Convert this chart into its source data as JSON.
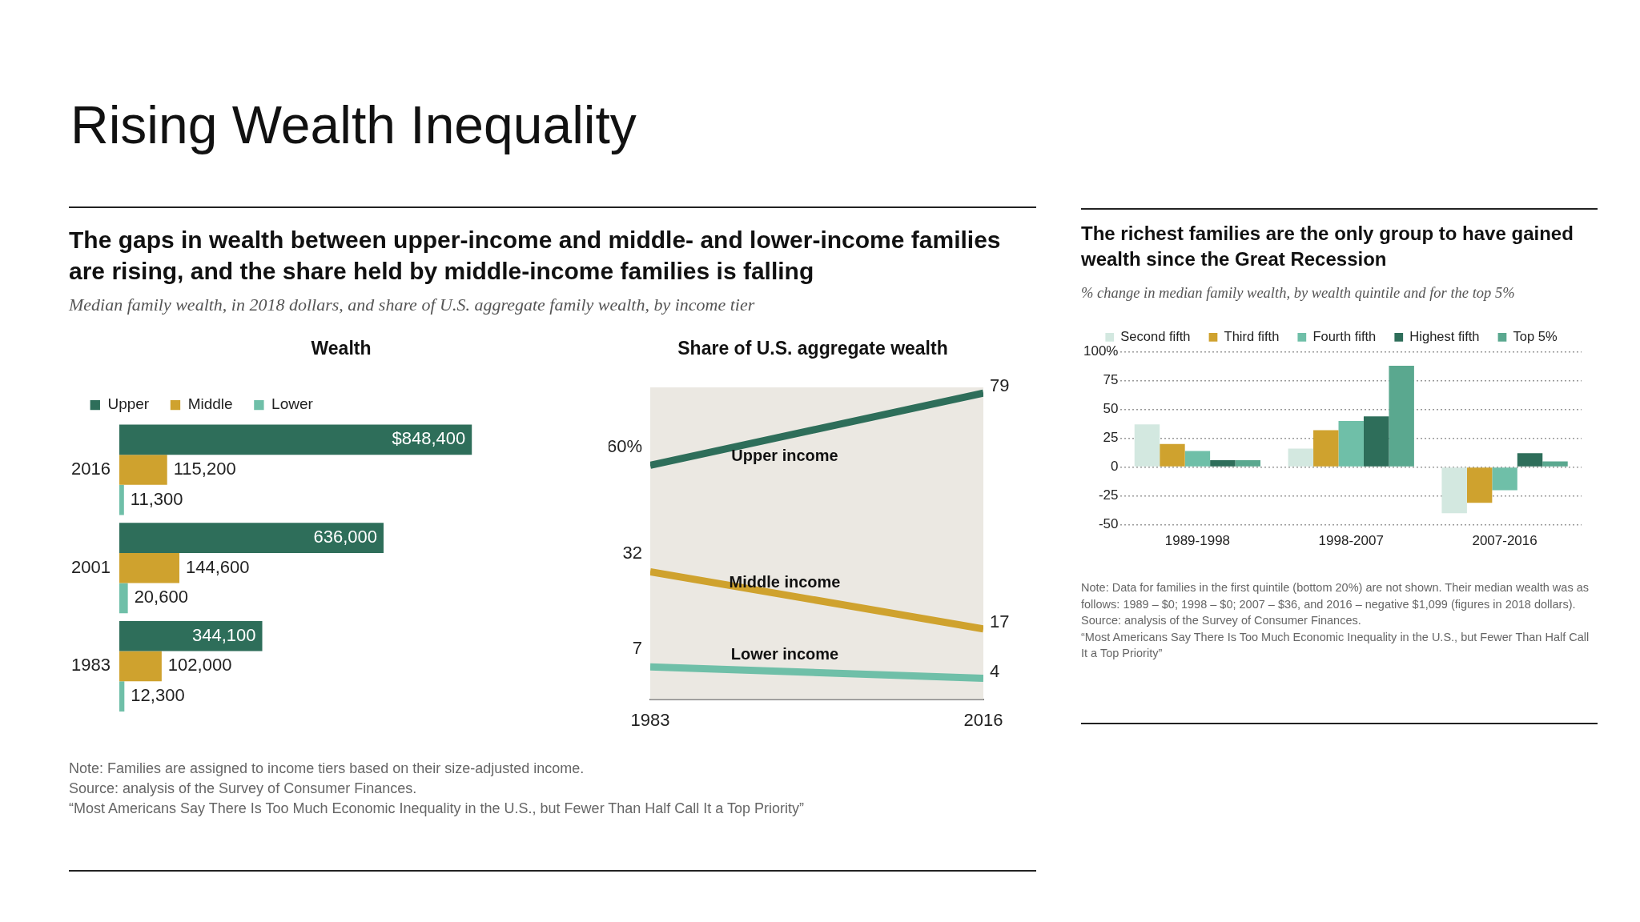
{
  "chart_data": [
    {
      "type": "bar",
      "orientation": "horizontal",
      "title": "Wealth",
      "subtitle": "Median family wealth, in 2018 dollars, and share of U.S. aggregate family wealth, by income tier",
      "annotations": [
        "Rising Wealth Inequality",
        "The gaps in wealth between upper-income and middle- and lower-income families are rising, and the share held by middle-income families is falling"
      ],
      "categories": [
        "2016",
        "2001",
        "1983"
      ],
      "series": [
        {
          "name": "Upper",
          "color": "#2e6e5a",
          "values": [
            848400,
            636000,
            344100
          ],
          "value_labels": [
            "$848,400",
            "636,000",
            "344,100"
          ]
        },
        {
          "name": "Middle",
          "color": "#cfa22e",
          "values": [
            115200,
            144600,
            102000
          ],
          "value_labels": [
            "115,200",
            "144,600",
            "102,000"
          ]
        },
        {
          "name": "Lower",
          "color": "#6fbfa8",
          "values": [
            11300,
            20600,
            12300
          ],
          "value_labels": [
            "11,300",
            "20,600",
            "12,300"
          ]
        }
      ],
      "legend": "top left",
      "tick_labels": "y"
    },
    {
      "type": "line",
      "title": "Share of U.S. aggregate wealth",
      "x": [
        1983,
        2016
      ],
      "xlim": [
        1983,
        2016
      ],
      "xticks": [
        1983,
        2016
      ],
      "ylim": [
        -1.5,
        80.5
      ],
      "tick_labels": "x",
      "marker": "none",
      "line_style": "solid",
      "series": [
        {
          "name": "Upper income",
          "color": "#2e6e5a",
          "values": [
            60,
            79
          ],
          "value_labels": [
            "60%",
            "79"
          ]
        },
        {
          "name": "Middle income",
          "color": "#cfa22e",
          "values": [
            32,
            17
          ],
          "value_labels": [
            "32",
            "17"
          ]
        },
        {
          "name": "Lower income",
          "color": "#6fbfa8",
          "values": [
            7,
            4
          ],
          "value_labels": [
            "7",
            "4"
          ]
        }
      ],
      "annotations": [
        "Note: Families are assigned to income tiers based on their size-adjusted income.",
        "Source: analysis of the Survey of Consumer Finances.",
        "“Most Americans Say There Is Too Much Economic Inequality in the U.S., but Fewer Than Half Call It a Top Priority”"
      ]
    },
    {
      "type": "bar",
      "title": "The richest families are the only group to have gained wealth since the Great Recession",
      "subtitle": "% change in median family wealth, by wealth quintile and for the top 5%",
      "categories": [
        "1989-1998",
        "1998-2007",
        "2007-2016"
      ],
      "series": [
        {
          "name": "Second fifth",
          "color": "#d3e8e0",
          "values": [
            37,
            16,
            -40
          ]
        },
        {
          "name": "Third fifth",
          "color": "#cfa22e",
          "values": [
            20,
            32,
            -31
          ]
        },
        {
          "name": "Fourth fifth",
          "color": "#6fbfa8",
          "values": [
            14,
            40,
            -20
          ]
        },
        {
          "name": "Highest fifth",
          "color": "#2e6e5a",
          "values": [
            6,
            44,
            12
          ]
        },
        {
          "name": "Top 5%",
          "color": "#5aa88f",
          "values": [
            6,
            88,
            5
          ]
        }
      ],
      "ylim": [
        -50,
        100
      ],
      "yticks": [
        {
          "value": 100,
          "label": "100%"
        },
        75,
        50,
        25,
        0,
        -25,
        -50
      ],
      "grid": "y",
      "legend": "top",
      "annotations": [
        "Note: Data for families in the first quintile (bottom 20%) are not shown. Their median wealth was as follows: 1989 – $0; 1998 – $0; 2007 – $36, and 2016 – negative $1,099 (figures in 2018 dollars).",
        "Source: analysis of the Survey of Consumer Finances.",
        "“Most Americans Say There Is Too Much Economic Inequality in the U.S., but Fewer Than Half Call It a Top Priority”"
      ]
    }
  ]
}
